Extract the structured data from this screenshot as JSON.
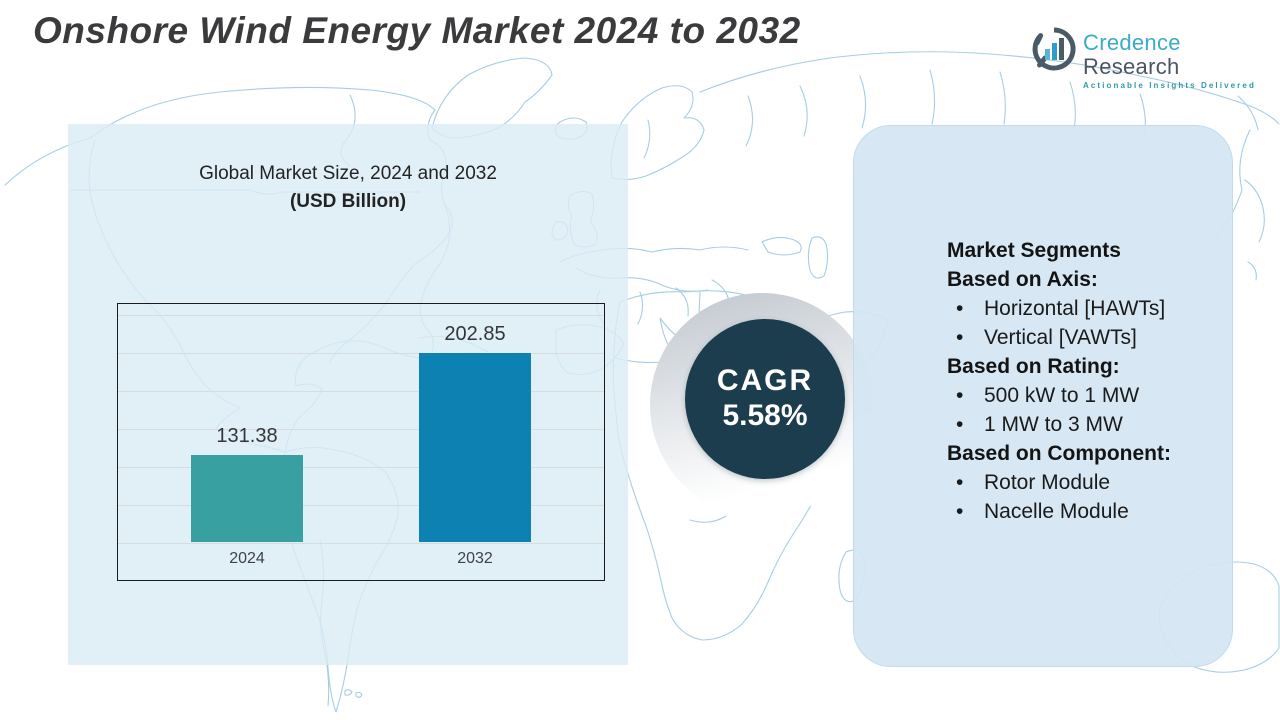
{
  "header": {
    "title": "Onshore Wind Energy Market 2024 to 2032",
    "logo": {
      "name": "Credence",
      "name2": "Research",
      "tagline": "Actionable Insights Delivered"
    }
  },
  "chart_card": {
    "title_line1": "Global Market Size, 2024 and 2032",
    "title_line2": "(USD Billion)"
  },
  "chart_data": {
    "type": "bar",
    "title": "Global Market Size, 2024 and 2032 (USD Billion)",
    "categories": [
      "2024",
      "2032"
    ],
    "values": [
      131.38,
      202.85
    ],
    "value_labels": [
      "131.38",
      "202.85"
    ],
    "bar_colors": [
      "#38a0a1",
      "#0d81b1"
    ],
    "xlabel": "",
    "ylabel": "USD Billion",
    "ylim": [
      70,
      230
    ],
    "grid": true,
    "legend": false
  },
  "cagr": {
    "label": "CAGR",
    "value": "5.58%"
  },
  "segments": {
    "bullet": "•",
    "title": "Market Segments",
    "groups": [
      {
        "heading": "Based on Axis:",
        "items": [
          "Horizontal [HAWTs]",
          "Vertical [VAWTs]"
        ]
      },
      {
        "heading": "Based on Rating:",
        "items": [
          "500 kW to 1 MW",
          "1 MW to 3 MW"
        ]
      },
      {
        "heading": "Based on Component:",
        "items": [
          "Rotor Module",
          "Nacelle Module"
        ]
      }
    ]
  },
  "colors": {
    "accent_teal": "#38a0a1",
    "accent_blue": "#0d81b1",
    "cagr_circle": "#1c3d4d",
    "panel_blue": "#dbebf5",
    "map_line": "#a2cbe0",
    "title_text": "#3b3b3e"
  }
}
